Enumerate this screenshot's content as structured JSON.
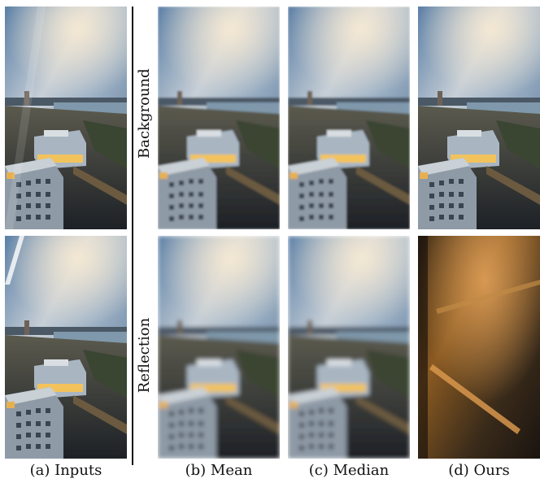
{
  "row_labels": [
    "Background",
    "Reflection"
  ],
  "captions": [
    "(a) Inputs",
    "(b) Mean",
    "(c) Median",
    "(d) Ours"
  ],
  "panels": [
    {
      "id": "inputs-background",
      "scene": "city",
      "variant": "sharp-glare"
    },
    {
      "id": "mean-background",
      "scene": "city",
      "variant": "soft"
    },
    {
      "id": "median-background",
      "scene": "city",
      "variant": "soft"
    },
    {
      "id": "ours-background",
      "scene": "city",
      "variant": "clean"
    },
    {
      "id": "inputs-reflection",
      "scene": "city",
      "variant": "sharp-glare"
    },
    {
      "id": "mean-reflection",
      "scene": "city",
      "variant": "blurred"
    },
    {
      "id": "median-reflection",
      "scene": "city",
      "variant": "blurred"
    },
    {
      "id": "ours-reflection",
      "scene": "reflection",
      "variant": "dark"
    }
  ]
}
